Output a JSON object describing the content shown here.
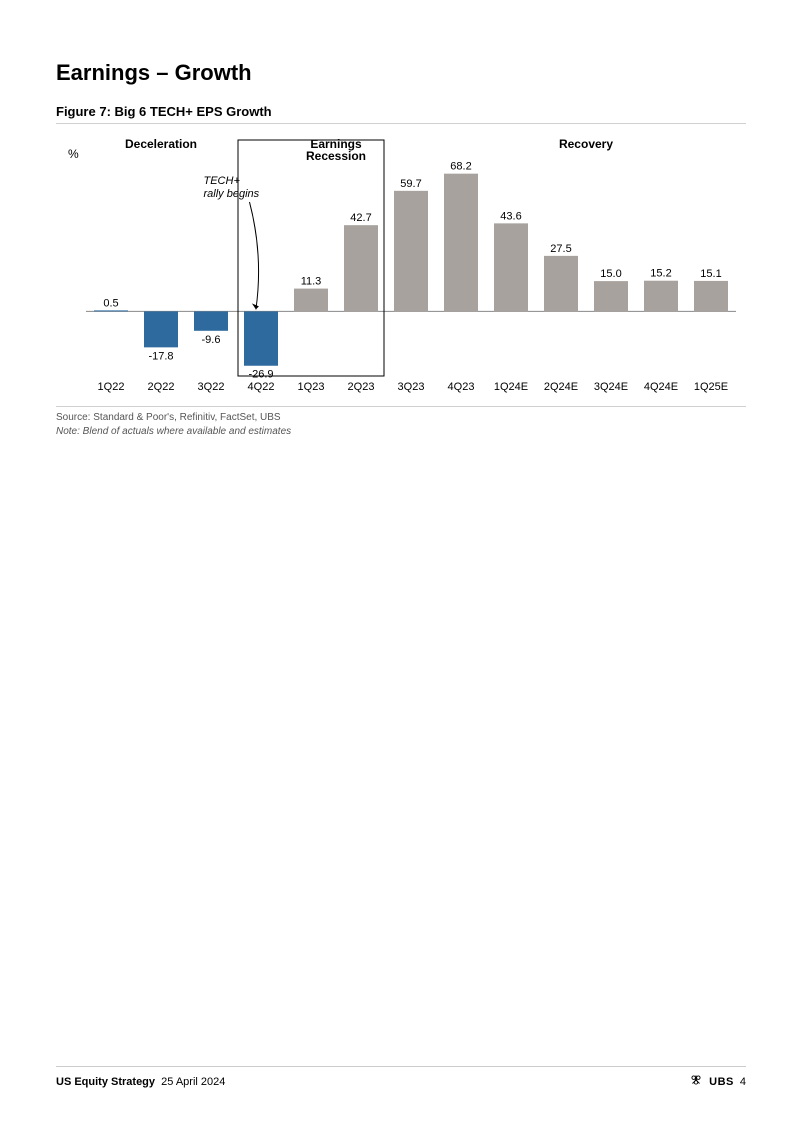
{
  "header": {
    "title": "Earnings – Growth",
    "figure_label": "Figure 7: Big 6 TECH+ EPS Growth"
  },
  "chart": {
    "type": "bar",
    "y_unit_label": "%",
    "categories": [
      "1Q22",
      "2Q22",
      "3Q22",
      "4Q22",
      "1Q23",
      "2Q23",
      "3Q23",
      "4Q23",
      "1Q24E",
      "2Q24E",
      "3Q24E",
      "4Q24E",
      "1Q25E"
    ],
    "values": [
      0.5,
      -17.8,
      -9.6,
      -26.9,
      11.3,
      42.7,
      59.7,
      68.2,
      43.6,
      27.5,
      15.0,
      15.2,
      15.1
    ],
    "value_labels": [
      "0.5",
      "-17.8",
      "-9.6",
      "-26.9",
      "11.3",
      "42.7",
      "59.7",
      "68.2",
      "43.6",
      "27.5",
      "15.0",
      "15.2",
      "15.1"
    ],
    "bar_colors": [
      "#2e6a9e",
      "#2e6a9e",
      "#2e6a9e",
      "#2e6a9e",
      "#a7a29d",
      "#a7a29d",
      "#a7a29d",
      "#a7a29d",
      "#a7a29d",
      "#a7a29d",
      "#a7a29d",
      "#a7a29d",
      "#a7a29d"
    ],
    "ylim": [
      -30,
      72
    ],
    "baseline_color": "#888888",
    "label_color": "#000000",
    "axis_label_color": "#000000",
    "value_label_fontsize": 11,
    "category_label_fontsize": 11,
    "bar_width_ratio": 0.68,
    "phase_labels": [
      {
        "text": "Deceleration",
        "center_index": 1,
        "bold": true
      },
      {
        "text": "Earnings\nRecession",
        "center_index": 4.5,
        "bold": true
      },
      {
        "text": "Recovery",
        "center_index": 9.5,
        "bold": true
      }
    ],
    "annotation": {
      "text1": "TECH+",
      "text2": "rally begins",
      "target_index": 3
    },
    "highlight_box": {
      "from_index": 3,
      "to_index": 5,
      "stroke": "#000000"
    }
  },
  "source": {
    "line1": "Source: Standard & Poor's, Refinitiv, FactSet, UBS",
    "line2": "Note: Blend of actuals where available and estimates"
  },
  "footer": {
    "strategy": "US Equity Strategy",
    "date": "25 April 2024",
    "brand": "UBS",
    "page_number": "4"
  }
}
